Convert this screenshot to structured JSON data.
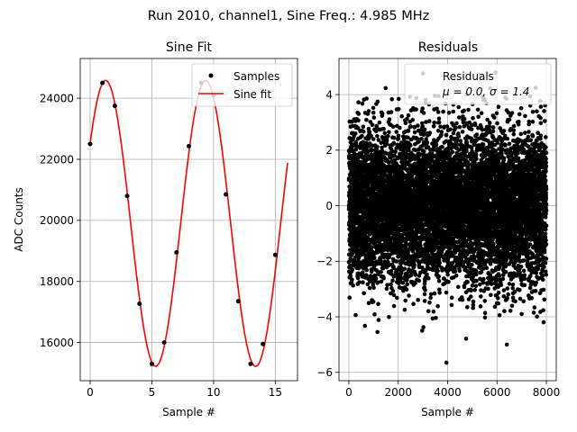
{
  "figure": {
    "suptitle": "Run 2010, channel1, Sine Freq.: 4.985 MHz"
  },
  "chart_data": [
    {
      "type": "scatter+line",
      "title": "Sine Fit",
      "xlabel": "Sample #",
      "ylabel": "ADC Counts",
      "xlim": [
        -0.8,
        16.8
      ],
      "ylim": [
        14750,
        25300
      ],
      "xticks": [
        0,
        5,
        10,
        15
      ],
      "yticks": [
        16000,
        18000,
        20000,
        22000,
        24000
      ],
      "grid": true,
      "legend": {
        "placement": "upper-right",
        "entries": [
          "Samples",
          "Sine fit"
        ]
      },
      "series": [
        {
          "name": "Samples",
          "kind": "scatter",
          "color": "#000000",
          "x": [
            0,
            1,
            2,
            3,
            4,
            5,
            6,
            7,
            8,
            9,
            10,
            11,
            12,
            13,
            14,
            15
          ],
          "y": [
            22500,
            24500,
            23750,
            20800,
            17270,
            15300,
            16000,
            18950,
            22430,
            24500,
            24100,
            20850,
            17350,
            15300,
            15950,
            18870
          ]
        },
        {
          "name": "Sine fit",
          "kind": "line",
          "color": "#ff0000",
          "model": {
            "offset": 19900,
            "amplitude": 4680,
            "samples_per_cycle": 8.1,
            "phase_deg": 34,
            "x_range": [
              0,
              16
            ]
          }
        }
      ]
    },
    {
      "type": "scatter",
      "title": "Residuals",
      "xlabel": "",
      "xlabel_text": "Sample #",
      "ylabel": "",
      "xlim": [
        -400,
        8400
      ],
      "ylim": [
        -6.3,
        5.3
      ],
      "xticks": [
        0,
        2000,
        4000,
        6000,
        8000
      ],
      "yticks": [
        -6,
        -4,
        -2,
        0,
        2,
        4
      ],
      "grid": true,
      "legend": {
        "placement": "upper-right",
        "entries": [
          "Residuals",
          "μ = 0.0, σ = 1.4"
        ]
      },
      "series": [
        {
          "name": "Residuals",
          "color": "#000000",
          "n_points": 8000,
          "mean": 0.0,
          "std": 1.4,
          "x_range": [
            0,
            8000
          ],
          "y_clip": [
            -4.8,
            4.8
          ]
        }
      ],
      "outliers": [
        {
          "x": 3950,
          "y": -5.65
        },
        {
          "x": 6400,
          "y": -5.0
        }
      ]
    }
  ]
}
